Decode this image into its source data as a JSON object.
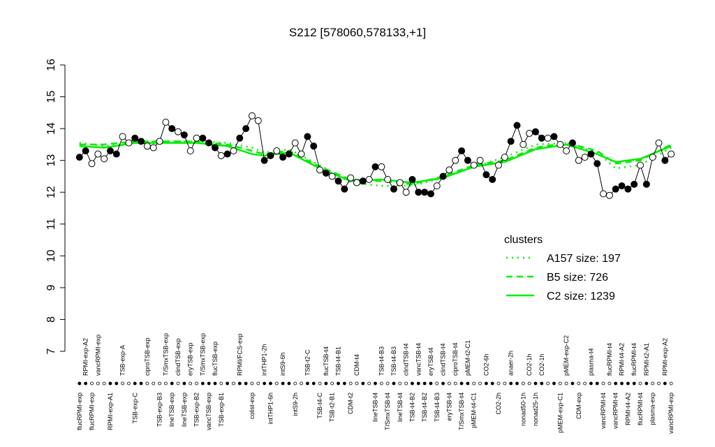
{
  "chart_data": {
    "type": "line",
    "title": "S212 [578060,578133,+1]",
    "ylim": [
      7,
      16
    ],
    "yticks": [
      7,
      8,
      9,
      10,
      11,
      12,
      13,
      14,
      15,
      16
    ],
    "xlim": [
      0,
      98
    ],
    "categories": [
      "flucRPMI-exp",
      "RPMI-exp-A2",
      "flucRPMI-exp",
      "vancRPMI-exp",
      null,
      "RPMI-exp-A1",
      null,
      "TSB-exp-A",
      null,
      "TSB-exp-C",
      null,
      "ciproTSB-exp",
      null,
      "TSB-exp-B3",
      "T/SmxTSB-exp",
      "lineTSB-exp",
      "clindTSB-exp",
      "lineTSB-exp",
      "eryTSB-exp",
      "TSB-exp-B2",
      "T/SmxTSB-exp",
      "vancTSB-exp",
      "flucTSB-exp",
      "TSB-exp-B1",
      null,
      null,
      "RPMI/FCS-exp",
      null,
      "colist-exp",
      null,
      "intTHP1-2h",
      "intTHP1-6h",
      null,
      "intS9-6h",
      null,
      "intS9-2h",
      null,
      "TSB-t2-C",
      null,
      "TSB-t4-C",
      "flucTSB-t4",
      "TSB-t2-B1",
      "TSB-t4-B1",
      null,
      "CDM-t2",
      "CDM-t4",
      null,
      null,
      "lineTSB-t4",
      "TSB-t4-B3",
      "T/SmxTSB-t4",
      "TSB-t4-B3",
      "lineTSB-t4",
      "clindTSB-t4",
      "TSB-t4-B2",
      "vancTSB-t4",
      "TSB-t4-B2",
      "eryTSB-t4",
      "TSB-t4-B3",
      "clindTSB-t4",
      "eryTSB-t4",
      "ciproTSB-t4",
      "T/SmxTSB-t4",
      "pMEM-t2-C1",
      "pMEM-t4-C1",
      null,
      "CO2-6h",
      null,
      "CO2-2h",
      null,
      "anaer-2h",
      null,
      "nonad50-1h",
      "CO2-1h",
      "nonad25-1h",
      "CO2-1h",
      null,
      null,
      "pMEM-exp-C1",
      "pMEM-exp-C2",
      null,
      "CDM-exp",
      null,
      "plasma-t4",
      null,
      "vancRPMI-t4",
      "flucRPMI-t4",
      "vancRPMI-t4",
      "RPMI-t4-A2",
      "RPMI-t4-A2",
      "flucRPMI-t4",
      "flucRPMI-t4",
      "RPMI-t2-A1",
      "plasma-exp",
      null,
      "RPMI-exp-A2",
      "vancRPMI-exp"
    ],
    "values": [
      13.1,
      13.3,
      12.9,
      13.2,
      13.05,
      13.3,
      13.2,
      13.75,
      13.55,
      13.7,
      13.6,
      13.45,
      13.4,
      13.6,
      14.2,
      14.0,
      13.9,
      13.8,
      13.3,
      13.7,
      13.7,
      13.55,
      13.4,
      13.15,
      13.2,
      13.3,
      13.7,
      14.0,
      14.4,
      14.25,
      13.0,
      13.15,
      13.3,
      13.1,
      13.2,
      13.55,
      13.2,
      13.75,
      13.45,
      12.7,
      12.6,
      12.5,
      12.35,
      12.1,
      12.45,
      12.3,
      12.35,
      12.4,
      12.8,
      12.8,
      12.4,
      12.1,
      12.3,
      12.0,
      12.4,
      12.0,
      12.0,
      11.95,
      12.2,
      12.5,
      12.7,
      13.0,
      13.3,
      13.0,
      12.85,
      13.0,
      12.55,
      12.4,
      12.85,
      13.1,
      13.6,
      14.1,
      13.5,
      13.85,
      13.9,
      13.7,
      13.7,
      13.75,
      13.5,
      13.3,
      13.55,
      13.0,
      13.1,
      13.2,
      12.9,
      11.95,
      11.9,
      12.1,
      12.2,
      12.1,
      12.25,
      12.85,
      12.25,
      13.1,
      13.55,
      13.0,
      13.2
    ],
    "marker_filled": [
      true,
      true,
      false,
      false,
      false,
      true,
      true,
      false,
      false,
      true,
      true,
      false,
      false,
      false,
      false,
      true,
      false,
      true,
      false,
      false,
      true,
      true,
      true,
      false,
      true,
      false,
      true,
      true,
      false,
      false,
      true,
      true,
      false,
      true,
      true,
      false,
      false,
      true,
      true,
      false,
      true,
      false,
      true,
      true,
      false,
      false,
      true,
      false,
      true,
      false,
      false,
      true,
      false,
      false,
      true,
      true,
      true,
      true,
      false,
      true,
      false,
      false,
      true,
      true,
      false,
      false,
      true,
      true,
      false,
      false,
      true,
      true,
      false,
      false,
      true,
      true,
      false,
      true,
      false,
      false,
      true,
      false,
      false,
      true,
      true,
      false,
      false,
      true,
      true,
      true,
      true,
      false,
      true,
      false,
      false,
      true,
      false
    ],
    "series": [
      {
        "name": "A157 size: 197",
        "style": "dotted",
        "color": "#00ee00",
        "x": [
          1,
          5,
          10,
          15,
          20,
          25,
          29,
          31,
          35,
          40,
          45,
          50,
          55,
          60,
          65,
          70,
          75,
          80,
          85,
          88,
          92,
          97
        ],
        "values": [
          13.55,
          13.45,
          13.55,
          13.6,
          13.6,
          13.55,
          13.4,
          13.25,
          13.35,
          12.85,
          12.3,
          12.2,
          12.2,
          12.45,
          12.8,
          13.1,
          13.5,
          13.55,
          13.25,
          12.75,
          12.85,
          13.4
        ]
      },
      {
        "name": "B5 size: 726",
        "style": "dashed",
        "color": "#00ee00",
        "x": [
          1,
          5,
          10,
          15,
          20,
          25,
          29,
          31,
          35,
          40,
          45,
          50,
          55,
          60,
          65,
          70,
          75,
          80,
          85,
          88,
          92,
          97
        ],
        "values": [
          13.5,
          13.5,
          13.6,
          13.6,
          13.6,
          13.5,
          13.3,
          13.2,
          13.3,
          12.8,
          12.4,
          12.35,
          12.25,
          12.5,
          12.85,
          13.0,
          13.4,
          13.55,
          13.3,
          12.9,
          13.0,
          13.5
        ]
      },
      {
        "name": "C2 size: 1239",
        "style": "solid",
        "color": "#00ee00",
        "x": [
          1,
          5,
          10,
          15,
          20,
          25,
          29,
          31,
          35,
          40,
          45,
          50,
          55,
          60,
          65,
          70,
          75,
          80,
          85,
          88,
          92,
          97
        ],
        "values": [
          13.45,
          13.4,
          13.55,
          13.55,
          13.55,
          13.45,
          13.2,
          13.15,
          13.25,
          12.75,
          12.35,
          12.4,
          12.3,
          12.45,
          12.8,
          12.95,
          13.35,
          13.5,
          13.2,
          12.95,
          13.05,
          13.45
        ]
      }
    ],
    "legend_title": "clusters"
  }
}
